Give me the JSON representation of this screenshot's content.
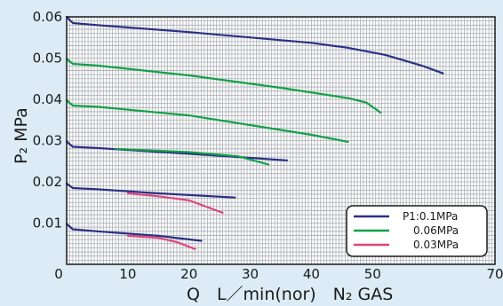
{
  "chart_data": {
    "type": "line",
    "xlabel": "Q　L／min(nor)　N₂ GAS",
    "ylabel": "P₂ MPa",
    "xlim": [
      0,
      70
    ],
    "ylim": [
      0,
      0.06
    ],
    "xticks": [
      "0",
      "10",
      "20",
      "30",
      "40",
      "50",
      "70"
    ],
    "xtick_values": [
      0,
      10,
      20,
      30,
      40,
      50,
      70
    ],
    "yticks": [
      "0.01",
      "0.02",
      "0.03",
      "0.04",
      "0.05",
      "0.06"
    ],
    "ytick_values": [
      0.01,
      0.02,
      0.03,
      0.04,
      0.05,
      0.06
    ],
    "grid": true,
    "legend_placement": "bottom-right",
    "series": [
      {
        "name": "P1:0.1MPa",
        "color": "#2b2f86",
        "curves": [
          [
            [
              0,
              0.06
            ],
            [
              1,
              0.0585
            ],
            [
              5,
              0.058
            ],
            [
              20,
              0.0563
            ],
            [
              40,
              0.0537
            ],
            [
              46,
              0.0525
            ],
            [
              52,
              0.0508
            ],
            [
              58,
              0.0482
            ],
            [
              61.5,
              0.0463
            ]
          ],
          [
            [
              0,
              0.0298
            ],
            [
              1,
              0.0285
            ],
            [
              5,
              0.0282
            ],
            [
              20,
              0.0268
            ],
            [
              30,
              0.0258
            ],
            [
              36,
              0.0252
            ]
          ],
          [
            [
              0,
              0.0196
            ],
            [
              1,
              0.0185
            ],
            [
              5,
              0.0182
            ],
            [
              15,
              0.0172
            ],
            [
              27.5,
              0.0162
            ]
          ],
          [
            [
              0,
              0.0098
            ],
            [
              1,
              0.0085
            ],
            [
              5,
              0.008
            ],
            [
              15,
              0.0069
            ],
            [
              22,
              0.0057
            ]
          ]
        ]
      },
      {
        "name": "0.06MPa",
        "color": "#14a048",
        "curves": [
          [
            [
              0,
              0.0498
            ],
            [
              1,
              0.0486
            ],
            [
              5,
              0.0482
            ],
            [
              20,
              0.0458
            ],
            [
              35,
              0.0428
            ],
            [
              46,
              0.0403
            ],
            [
              49,
              0.0392
            ],
            [
              51.3,
              0.0368
            ]
          ],
          [
            [
              0,
              0.0398
            ],
            [
              1,
              0.0385
            ],
            [
              5,
              0.0382
            ],
            [
              20,
              0.0361
            ],
            [
              40,
              0.0314
            ],
            [
              46,
              0.0297
            ]
          ],
          [
            [
              8,
              0.028
            ],
            [
              20,
              0.0272
            ],
            [
              28,
              0.0262
            ],
            [
              33,
              0.0242
            ]
          ]
        ]
      },
      {
        "name": "0.03MPa",
        "color": "#e0457e",
        "curves": [
          [
            [
              10,
              0.0172
            ],
            [
              15,
              0.0165
            ],
            [
              20,
              0.0155
            ],
            [
              25.5,
              0.0125
            ]
          ],
          [
            [
              10,
              0.0069
            ],
            [
              15,
              0.0064
            ],
            [
              18,
              0.0054
            ],
            [
              21,
              0.0037
            ]
          ]
        ]
      }
    ]
  }
}
